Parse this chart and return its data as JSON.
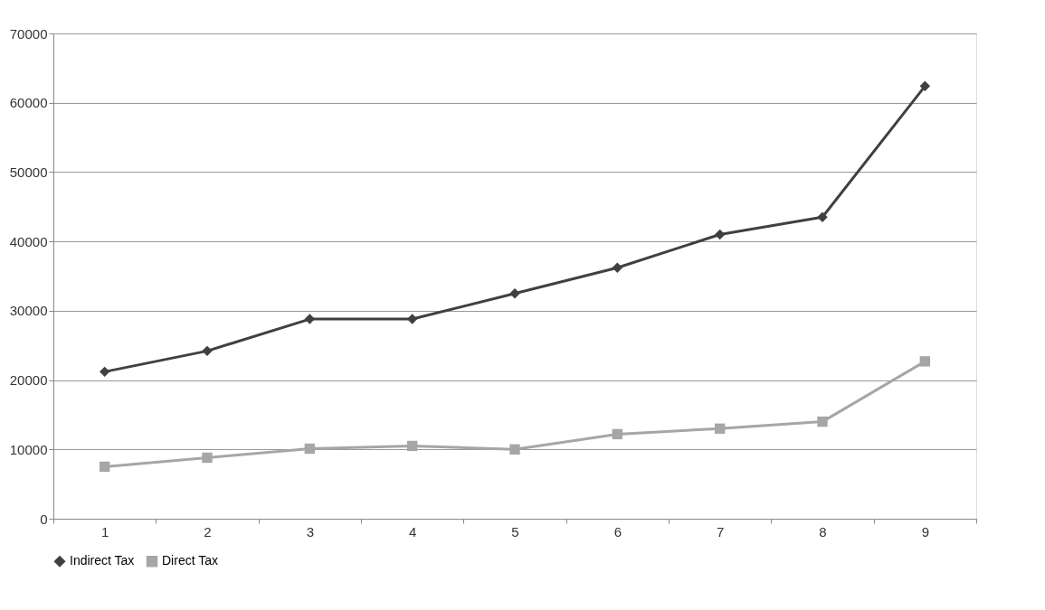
{
  "chart_data": {
    "type": "line",
    "categories": [
      "1",
      "2",
      "3",
      "4",
      "5",
      "6",
      "7",
      "8",
      "9"
    ],
    "series": [
      {
        "name": "Indirect Tax",
        "color": "#404040",
        "marker": "diamond",
        "values": [
          21200,
          24200,
          28800,
          28800,
          32500,
          36200,
          41000,
          43500,
          62400
        ]
      },
      {
        "name": "Direct Tax",
        "color": "#a6a6a6",
        "marker": "square",
        "values": [
          7500,
          8800,
          10100,
          10500,
          10000,
          12200,
          13000,
          14000,
          22700
        ]
      }
    ],
    "ylim": [
      0,
      70000
    ],
    "yticks": [
      0,
      10000,
      20000,
      30000,
      40000,
      50000,
      60000,
      70000
    ],
    "grid": "y",
    "legend": "bottom"
  }
}
